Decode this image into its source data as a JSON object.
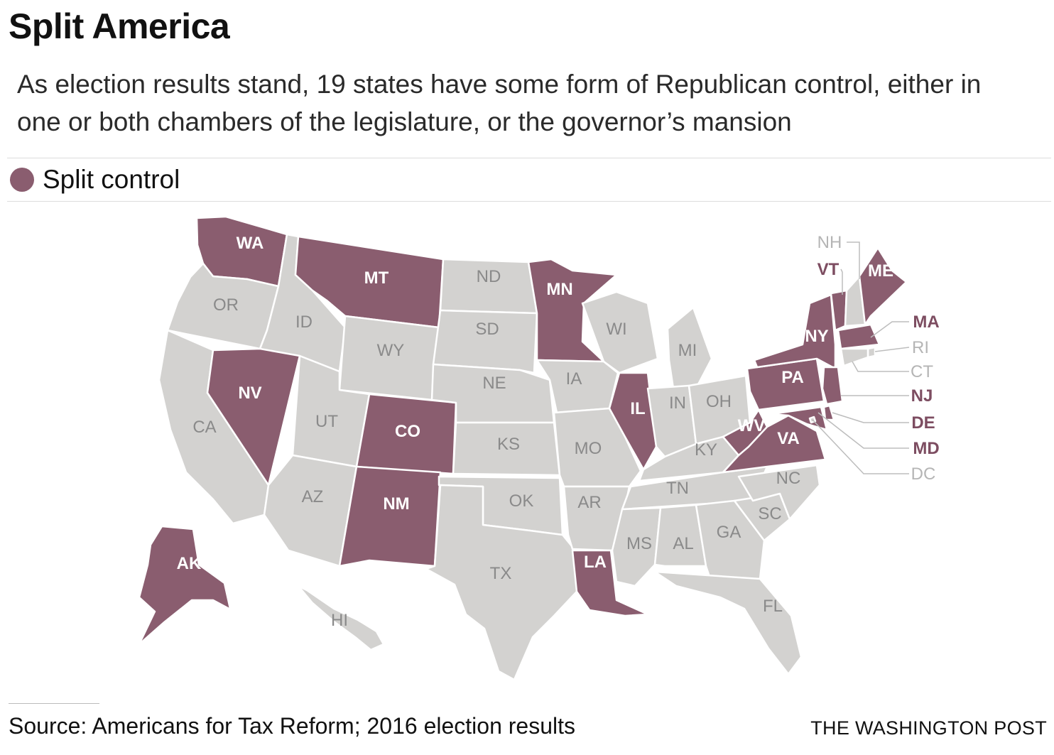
{
  "title": "Split America",
  "subtitle": "As election results stand, 19 states have some form of Republican control, either in one or both chambers of the legislature, or the governor’s mansion",
  "legend": {
    "label": "Split control",
    "color": "#8a5d6f"
  },
  "colors": {
    "split": "#8a5d6f",
    "other": "#d3d2d0",
    "split_text_callout": "#7d4d61",
    "other_text_callout": "#b5b5b5"
  },
  "states": [
    {
      "code": "WA",
      "split": true
    },
    {
      "code": "OR",
      "split": false
    },
    {
      "code": "CA",
      "split": false
    },
    {
      "code": "ID",
      "split": false
    },
    {
      "code": "NV",
      "split": true
    },
    {
      "code": "MT",
      "split": true
    },
    {
      "code": "WY",
      "split": false
    },
    {
      "code": "UT",
      "split": false
    },
    {
      "code": "AZ",
      "split": false
    },
    {
      "code": "CO",
      "split": true
    },
    {
      "code": "NM",
      "split": true
    },
    {
      "code": "ND",
      "split": false
    },
    {
      "code": "SD",
      "split": false
    },
    {
      "code": "NE",
      "split": false
    },
    {
      "code": "KS",
      "split": false
    },
    {
      "code": "OK",
      "split": false
    },
    {
      "code": "TX",
      "split": false
    },
    {
      "code": "MN",
      "split": true
    },
    {
      "code": "IA",
      "split": false
    },
    {
      "code": "MO",
      "split": false
    },
    {
      "code": "AR",
      "split": false
    },
    {
      "code": "LA",
      "split": true
    },
    {
      "code": "WI",
      "split": false
    },
    {
      "code": "IL",
      "split": true
    },
    {
      "code": "MI",
      "split": false
    },
    {
      "code": "IN",
      "split": false
    },
    {
      "code": "OH",
      "split": false
    },
    {
      "code": "KY",
      "split": false
    },
    {
      "code": "TN",
      "split": false
    },
    {
      "code": "MS",
      "split": false
    },
    {
      "code": "AL",
      "split": false
    },
    {
      "code": "GA",
      "split": false
    },
    {
      "code": "FL",
      "split": false
    },
    {
      "code": "SC",
      "split": false
    },
    {
      "code": "NC",
      "split": false
    },
    {
      "code": "VA",
      "split": true
    },
    {
      "code": "WV",
      "split": true
    },
    {
      "code": "PA",
      "split": true
    },
    {
      "code": "NY",
      "split": true
    },
    {
      "code": "VT",
      "split": true
    },
    {
      "code": "NH",
      "split": false
    },
    {
      "code": "ME",
      "split": true
    },
    {
      "code": "MA",
      "split": true
    },
    {
      "code": "RI",
      "split": false
    },
    {
      "code": "CT",
      "split": false
    },
    {
      "code": "NJ",
      "split": true
    },
    {
      "code": "DE",
      "split": true
    },
    {
      "code": "MD",
      "split": true
    },
    {
      "code": "DC",
      "split": false
    },
    {
      "code": "AK",
      "split": true
    },
    {
      "code": "HI",
      "split": false
    }
  ],
  "source": "Source: Americans for Tax Reform; 2016 election results",
  "credit": "THE WASHINGTON POST"
}
